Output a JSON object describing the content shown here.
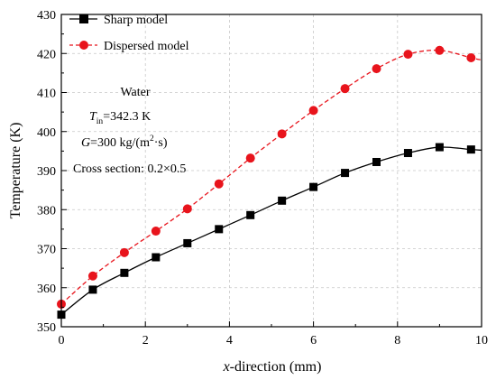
{
  "chart_data": {
    "type": "line",
    "xlabel": {
      "italic": "x",
      "rest": "-direction (mm)"
    },
    "ylabel": "Temperature (K)",
    "xlim": [
      0,
      10
    ],
    "ylim": [
      350,
      430
    ],
    "xticks": [
      0,
      2,
      4,
      6,
      8,
      10
    ],
    "yticks": [
      350,
      360,
      370,
      380,
      390,
      400,
      410,
      420,
      430
    ],
    "grid": true,
    "legend_position": "top-left",
    "series": [
      {
        "name": "Sharp model",
        "color": "#000000",
        "line_style": "solid",
        "marker": "square",
        "x": [
          0,
          0.75,
          1.5,
          2.25,
          3.0,
          3.75,
          4.5,
          5.25,
          6.0,
          6.75,
          7.5,
          8.25,
          9.0,
          9.75
        ],
        "y": [
          353.1,
          359.5,
          363.8,
          367.8,
          371.4,
          375.0,
          378.6,
          382.3,
          385.8,
          389.4,
          392.2,
          394.5,
          396.0,
          395.4
        ]
      },
      {
        "name": "Dispersed model",
        "color": "#e8141c",
        "line_style": "dashed",
        "marker": "circle",
        "x": [
          0,
          0.75,
          1.5,
          2.25,
          3.0,
          3.75,
          4.5,
          5.25,
          6.0,
          6.75,
          7.5,
          8.25,
          9.0,
          9.75
        ],
        "y": [
          355.8,
          363.0,
          369.0,
          374.5,
          380.2,
          386.6,
          393.2,
          399.4,
          405.4,
          411.0,
          416.1,
          419.8,
          420.8,
          418.9
        ]
      }
    ],
    "annotation": {
      "fluid": "Water",
      "tin_symbol": "T",
      "tin_sub": "in",
      "tin_value": "=342.3 K",
      "g_symbol": "G",
      "g_value_prefix": "=300 kg/(m",
      "g_sup": "2",
      "g_value_suffix": "·s)",
      "cross_section": "Cross section: 0.2×0.5"
    }
  }
}
